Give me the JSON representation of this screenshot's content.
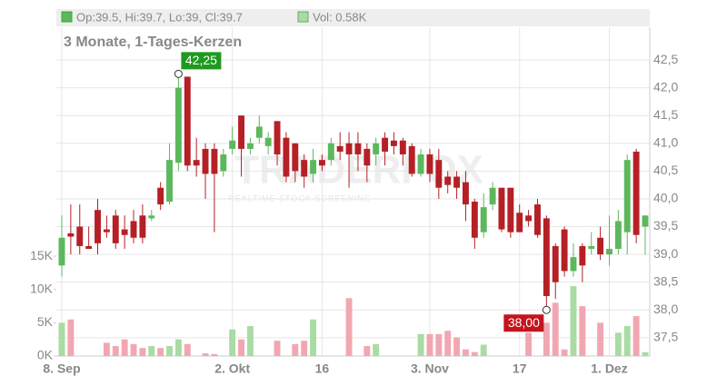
{
  "chart_data": {
    "type": "candlestick",
    "header": {
      "ohlc": "Op:39.5, Hi:39.7, Lo:39, Cl:39.7",
      "volume": "Vol: 0.58K"
    },
    "subtitle": "3 Monate, 1-Tages-Kerzen",
    "watermark": {
      "brand": "TRADERFOX",
      "tagline": "REALTIME STOCK SCREENING"
    },
    "up_color": "#5cb85c",
    "down_color": "#b52026",
    "up_volume_color": "#a8dca4",
    "down_volume_color": "#f1a7b1",
    "grid": true,
    "xticks": [
      {
        "value": 0,
        "label": "8. Sep"
      },
      {
        "value": 19,
        "label": "2. Okt"
      },
      {
        "value": 29,
        "label": "16"
      },
      {
        "value": 41,
        "label": "3. Nov"
      },
      {
        "value": 51,
        "label": "17"
      },
      {
        "value": 61,
        "label": "1. Dez"
      }
    ],
    "ylim": [
      37.17,
      43.09
    ],
    "yticks": [
      {
        "value": 37.5,
        "label": "37,5"
      },
      {
        "value": 38,
        "label": "38,0"
      },
      {
        "value": 38.5,
        "label": "38,5"
      },
      {
        "value": 39,
        "label": "39,0"
      },
      {
        "value": 39.5,
        "label": "39,5"
      },
      {
        "value": 40,
        "label": "40,0"
      },
      {
        "value": 40.5,
        "label": "40,5"
      },
      {
        "value": 41,
        "label": "41,0"
      },
      {
        "value": 41.5,
        "label": "41,5"
      },
      {
        "value": 42,
        "label": "42,0"
      },
      {
        "value": 42.5,
        "label": "42,5"
      }
    ],
    "vlim": [
      0,
      49400
    ],
    "vticks": [
      {
        "value": 0,
        "label": "0K"
      },
      {
        "value": 5000,
        "label": "5K"
      },
      {
        "value": 10000,
        "label": "10K"
      },
      {
        "value": 15000,
        "label": "15K"
      }
    ],
    "open": [
      38.8,
      39.38,
      39.5,
      39.15,
      39.8,
      39.45,
      39.7,
      39.45,
      39.6,
      39.7,
      39.65,
      40.2,
      39.95,
      40.65,
      42.2,
      40.7,
      40.9,
      40.9,
      40.5,
      40.9,
      41.5,
      40.9,
      41.1,
      40.95,
      41.4,
      41.1,
      41.0,
      40.7,
      40.45,
      40.7,
      40.7,
      40.95,
      41.0,
      41.0,
      40.9,
      40.8,
      41.1,
      41.05,
      41.05,
      40.95,
      40.45,
      40.8,
      40.7,
      40.4,
      40.4,
      40.3,
      39.95,
      39.4,
      39.9,
      40.2,
      40.2,
      39.75,
      39.7,
      39.9,
      39.65,
      39.15,
      39.45,
      38.7,
      39.15,
      39.1,
      39.3,
      39.0,
      39.1,
      39.4,
      40.85,
      39.5
    ],
    "high": [
      39.7,
      39.9,
      39.9,
      39.5,
      40.0,
      39.7,
      39.8,
      39.7,
      39.8,
      39.9,
      39.8,
      40.3,
      41.0,
      42.25,
      42.2,
      41.1,
      41.0,
      41.0,
      40.9,
      41.3,
      41.5,
      41.1,
      41.5,
      41.2,
      41.4,
      41.2,
      41.0,
      40.8,
      40.9,
      40.8,
      41.1,
      41.2,
      41.2,
      41.2,
      41.0,
      41.1,
      41.2,
      41.2,
      41.1,
      41.0,
      40.9,
      40.9,
      40.9,
      40.5,
      40.5,
      40.5,
      40.0,
      40.1,
      40.3,
      40.2,
      40.2,
      39.9,
      39.8,
      40.0,
      39.7,
      39.2,
      39.5,
      39.2,
      39.2,
      39.4,
      39.5,
      39.7,
      39.8,
      40.8,
      40.9,
      39.7
    ],
    "low": [
      38.6,
      39.0,
      39.0,
      39.1,
      39.0,
      39.3,
      39.1,
      39.1,
      39.2,
      39.2,
      39.6,
      39.8,
      39.9,
      40.5,
      40.5,
      40.4,
      40.0,
      39.4,
      40.4,
      40.8,
      40.4,
      40.8,
      41.0,
      40.8,
      40.6,
      40.3,
      40.3,
      40.2,
      40.3,
      40.5,
      40.6,
      40.7,
      40.2,
      40.5,
      40.3,
      40.6,
      40.6,
      40.8,
      40.6,
      40.4,
      40.4,
      40.3,
      40.0,
      40.1,
      40.0,
      39.6,
      39.1,
      39.3,
      39.8,
      39.4,
      39.3,
      39.4,
      39.5,
      39.3,
      38.0,
      38.2,
      38.6,
      38.6,
      38.5,
      39.0,
      38.9,
      38.8,
      39.0,
      39.0,
      39.2,
      39.0
    ],
    "close": [
      39.3,
      39.32,
      39.15,
      39.1,
      39.2,
      39.4,
      39.2,
      39.35,
      39.3,
      39.3,
      39.7,
      39.9,
      40.7,
      42.0,
      40.6,
      40.6,
      40.45,
      40.45,
      40.8,
      41.05,
      40.9,
      41.0,
      41.3,
      41.1,
      40.8,
      40.4,
      40.5,
      40.4,
      40.7,
      40.6,
      41.0,
      40.85,
      40.8,
      40.8,
      40.6,
      41.0,
      40.85,
      40.95,
      40.8,
      40.45,
      40.8,
      40.45,
      40.2,
      40.25,
      40.2,
      39.9,
      39.3,
      39.85,
      40.2,
      39.45,
      39.4,
      39.4,
      39.6,
      39.35,
      38.25,
      38.5,
      38.7,
      38.95,
      38.8,
      39.15,
      39.0,
      39.1,
      39.6,
      40.7,
      39.35,
      39.7
    ],
    "volume": [
      5000,
      5500,
      0,
      0,
      0,
      2000,
      1500,
      2500,
      1800,
      1200,
      1500,
      1200,
      1500,
      2500,
      1800,
      0,
      400,
      300,
      0,
      4000,
      2500,
      4500,
      0,
      0,
      2300,
      0,
      1800,
      2300,
      5500,
      0,
      0,
      0,
      8700,
      0,
      1500,
      1800,
      0,
      0,
      0,
      0,
      3300,
      3300,
      3300,
      3800,
      2800,
      1000,
      600,
      1700,
      0,
      0,
      0,
      0,
      3500,
      0,
      5000,
      8000,
      1000,
      10500,
      7500,
      0,
      5000,
      0,
      3500,
      4500,
      6000,
      580
    ],
    "annotations": [
      {
        "index": 13,
        "field": "high",
        "label": "42,25"
      },
      {
        "index": 54,
        "field": "low",
        "label": "38,00"
      }
    ]
  }
}
